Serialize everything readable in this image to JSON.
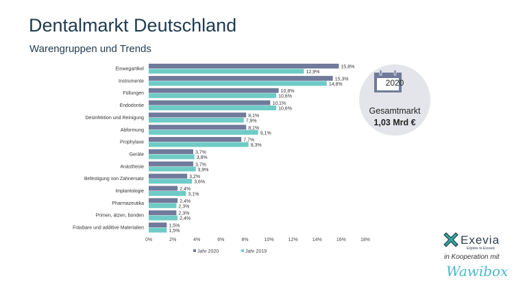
{
  "header": {
    "title": "Dentalmarkt Deutschland",
    "subtitle": "Warengruppen und Trends"
  },
  "badge": {
    "icon": "calendar-icon",
    "year": "2020",
    "label": "Gesamtmarkt",
    "value": "1,03 Mrd €"
  },
  "footer": {
    "brand": "Exevia",
    "tagline": "Explore to Exceed",
    "cooperation": "in Kooperation mit",
    "partner": "Wawibox"
  },
  "chart_data": {
    "type": "bar",
    "orientation": "horizontal",
    "categories": [
      "Einwegartikel",
      "Instrumente",
      "Füllungen",
      "Endodontie",
      "Desinfektion und Reinigung",
      "Abformung",
      "Prophylaxe",
      "Geräte",
      "Anästhesie",
      "Befestigung von Zahnersatz",
      "Implantologie",
      "Pharmazeutika",
      "Primen, ätzen, bonden",
      "Fräsbare und additive Materialien"
    ],
    "series": [
      {
        "name": "Jahr 2020",
        "color": "#707a9a",
        "values": [
          15.8,
          15.3,
          10.8,
          10.1,
          8.1,
          8.1,
          7.7,
          3.7,
          3.7,
          3.2,
          2.4,
          2.4,
          2.3,
          1.5
        ]
      },
      {
        "name": "Jahr 2019",
        "color": "#6fcbc6",
        "values": [
          12.9,
          14.8,
          10.6,
          10.6,
          7.9,
          9.1,
          8.3,
          3.8,
          3.9,
          3.6,
          3.1,
          2.3,
          2.4,
          1.5
        ]
      }
    ],
    "xlim": [
      0,
      18
    ],
    "xticks": [
      "0%",
      "2%",
      "4%",
      "6%",
      "8%",
      "10%",
      "12%",
      "14%",
      "16%",
      "18%"
    ],
    "grid": false,
    "legend": "bottom"
  }
}
